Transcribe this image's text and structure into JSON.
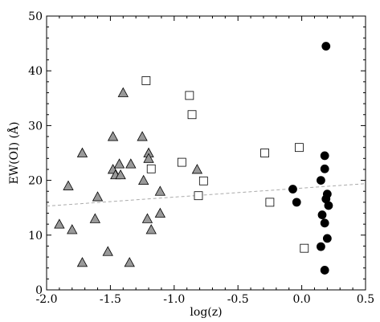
{
  "chart_data": {
    "type": "scatter",
    "xlabel": "log(z)",
    "ylabel": "EW(OI) (Å)",
    "xlim": [
      -2.0,
      0.5
    ],
    "ylim": [
      0,
      50
    ],
    "xticks": [
      -2.0,
      -1.5,
      -1.0,
      -0.5,
      0.0,
      0.5
    ],
    "xtick_labels": [
      "-2.0",
      "-1.5",
      "-1.0",
      "-0.5",
      "0.0",
      "0.5"
    ],
    "yticks": [
      0,
      10,
      20,
      30,
      40,
      50
    ],
    "ytick_labels": [
      "0",
      "10",
      "20",
      "30",
      "40",
      "50"
    ],
    "grid": false,
    "series": [
      {
        "marker": "triangle",
        "color": "#999999",
        "points": [
          [
            -1.9,
            12
          ],
          [
            -1.83,
            19
          ],
          [
            -1.8,
            11
          ],
          [
            -1.72,
            25
          ],
          [
            -1.72,
            5
          ],
          [
            -1.62,
            13
          ],
          [
            -1.6,
            17
          ],
          [
            -1.52,
            7
          ],
          [
            -1.48,
            28
          ],
          [
            -1.48,
            22
          ],
          [
            -1.46,
            21
          ],
          [
            -1.43,
            23
          ],
          [
            -1.42,
            21
          ],
          [
            -1.4,
            36
          ],
          [
            -1.35,
            5
          ],
          [
            -1.34,
            23
          ],
          [
            -1.25,
            28
          ],
          [
            -1.24,
            20
          ],
          [
            -1.21,
            13
          ],
          [
            -1.2,
            25
          ],
          [
            -1.2,
            24
          ],
          [
            -1.18,
            11
          ],
          [
            -1.11,
            18
          ],
          [
            -1.11,
            14
          ],
          [
            -0.82,
            22
          ]
        ]
      },
      {
        "marker": "square-open",
        "color": "#ffffff",
        "points": [
          [
            -1.22,
            38.2
          ],
          [
            -1.18,
            22.1
          ],
          [
            -0.94,
            23.3
          ],
          [
            -0.88,
            35.5
          ],
          [
            -0.86,
            32
          ],
          [
            -0.81,
            17.2
          ],
          [
            -0.77,
            19.9
          ],
          [
            -0.29,
            25
          ],
          [
            -0.25,
            16
          ],
          [
            -0.02,
            26
          ],
          [
            0.02,
            7.6
          ]
        ]
      },
      {
        "marker": "circle",
        "color": "#000000",
        "points": [
          [
            0.19,
            44.5
          ],
          [
            0.18,
            24.5
          ],
          [
            0.18,
            22.1
          ],
          [
            0.15,
            20
          ],
          [
            0.2,
            17.5
          ],
          [
            0.19,
            16.6
          ],
          [
            0.21,
            15.4
          ],
          [
            0.16,
            13.7
          ],
          [
            0.18,
            12.2
          ],
          [
            0.2,
            9.4
          ],
          [
            0.15,
            7.9
          ],
          [
            0.18,
            3.6
          ],
          [
            -0.07,
            18.4
          ],
          [
            -0.04,
            16
          ]
        ]
      }
    ],
    "fit_line": {
      "style": "dashed",
      "color": "#aaaaaa",
      "x": [
        -2.0,
        0.5
      ],
      "y": [
        15.3,
        19.4
      ]
    }
  }
}
